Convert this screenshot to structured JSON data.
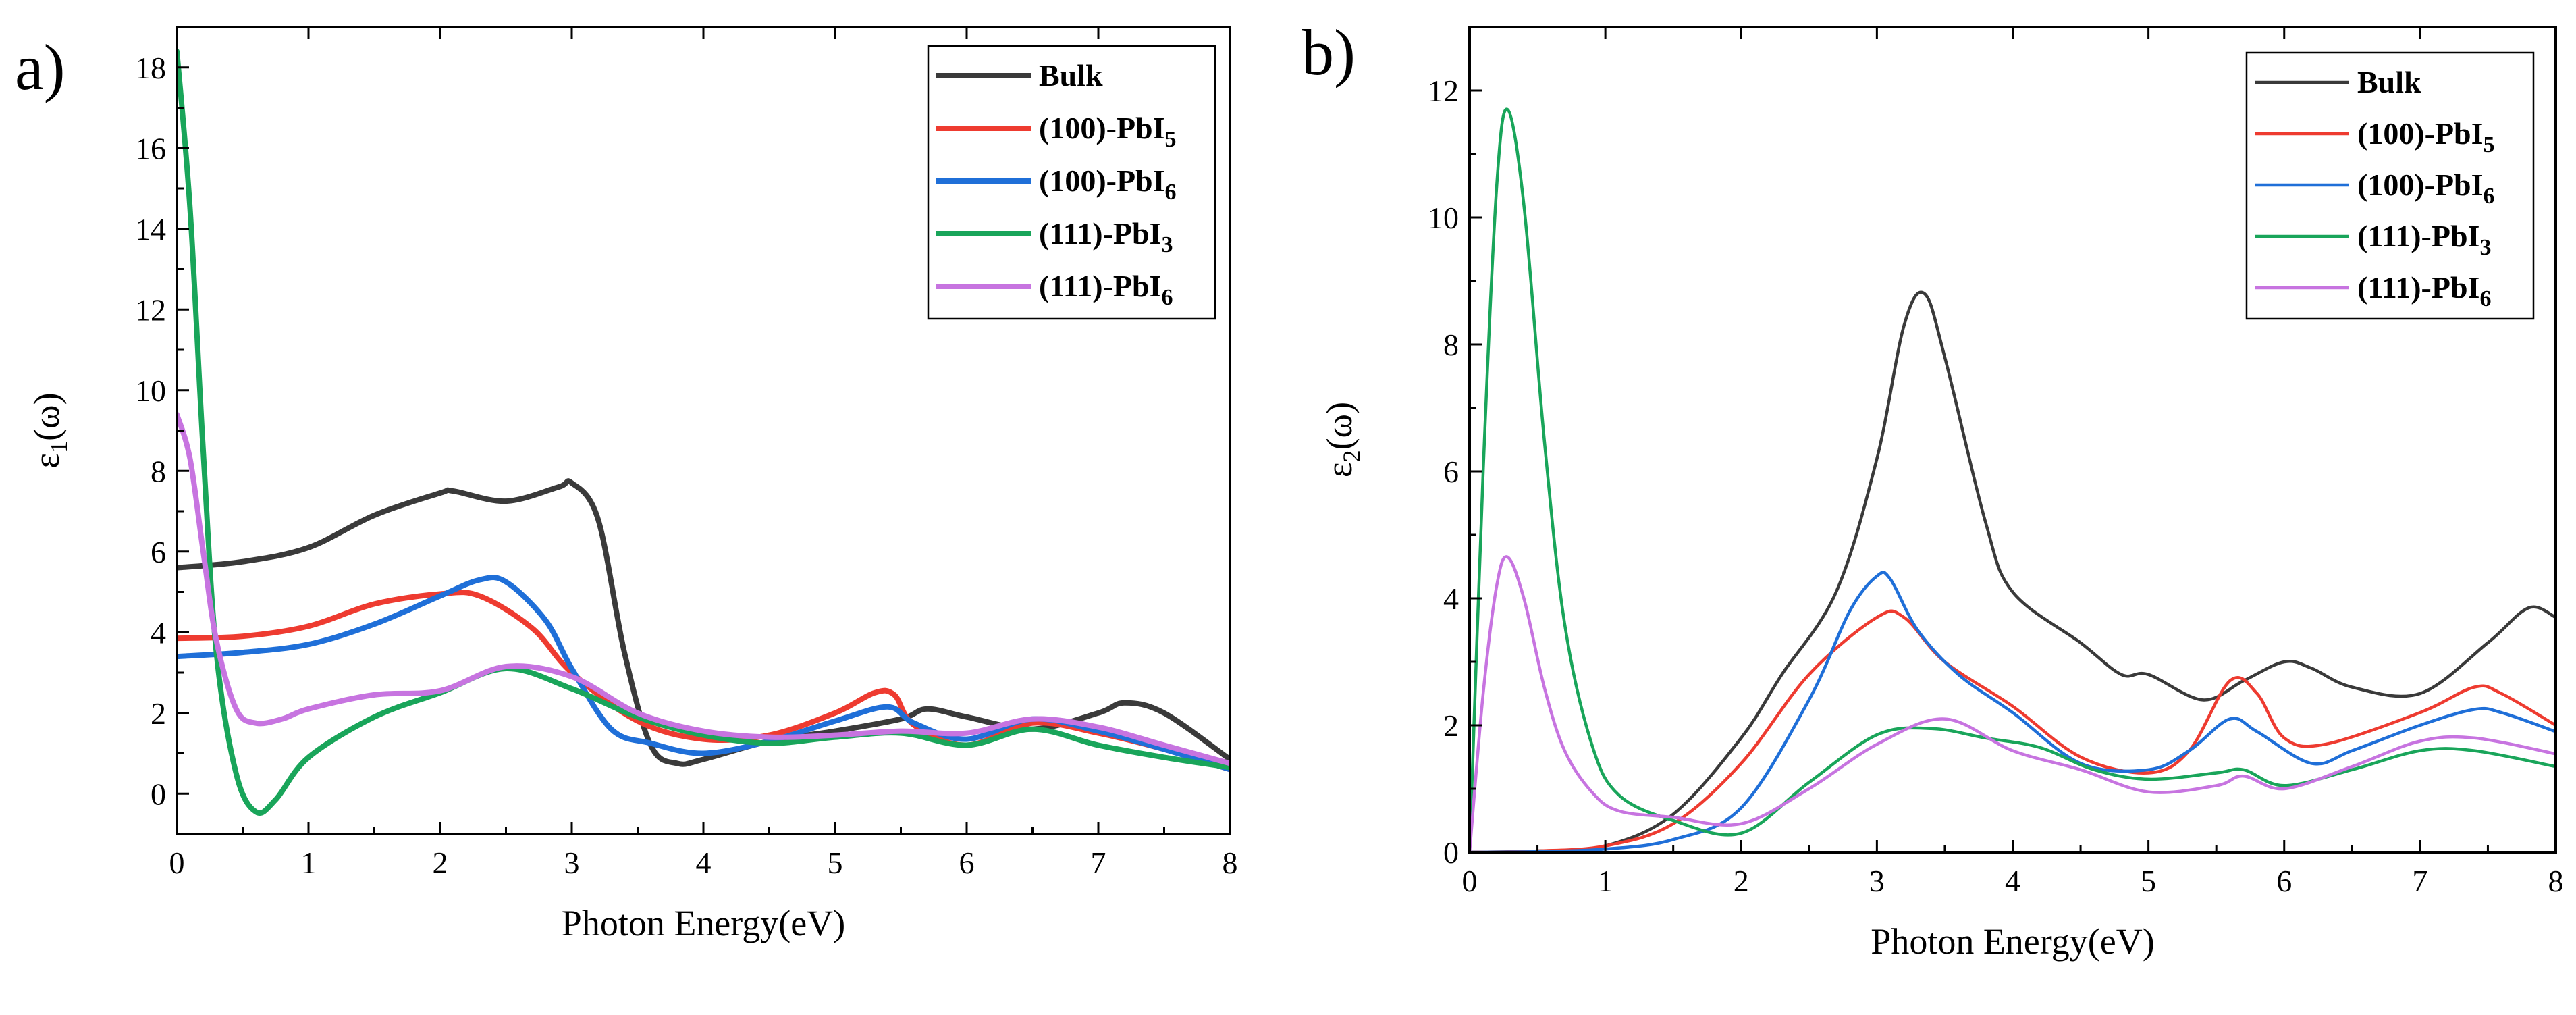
{
  "figure": {
    "panels": [
      {
        "id": "a",
        "label": "a)"
      },
      {
        "id": "b",
        "label": "b)"
      }
    ]
  },
  "chart_data": [
    {
      "type": "line",
      "panel": "a)",
      "xlabel": "Photon Energy(eV)",
      "ylabel_main": "ε",
      "ylabel_sub": "1",
      "ylabel_tail": "(ω)",
      "xlim": [
        0,
        8
      ],
      "ylim": [
        -1,
        19
      ],
      "xticks": [
        0,
        1,
        2,
        3,
        4,
        5,
        6,
        7,
        8
      ],
      "yticks": [
        0,
        2,
        4,
        6,
        8,
        10,
        12,
        14,
        16,
        18
      ],
      "legend_position": "top-right",
      "series": [
        {
          "name": "Bulk",
          "label_main": "Bulk",
          "label_sub": "",
          "color": "#3a3a3a",
          "x": [
            0,
            0.5,
            1,
            1.5,
            2,
            2.1,
            2.5,
            2.9,
            3.0,
            3.2,
            3.4,
            3.6,
            3.8,
            4.0,
            4.5,
            5.0,
            5.5,
            5.7,
            6.0,
            6.5,
            7.0,
            7.2,
            7.5,
            8.0
          ],
          "y": [
            5.6,
            5.75,
            6.1,
            6.9,
            7.45,
            7.5,
            7.25,
            7.6,
            7.7,
            6.8,
            3.5,
            1.2,
            0.75,
            0.85,
            1.3,
            1.55,
            1.85,
            2.1,
            1.9,
            1.6,
            2.0,
            2.25,
            2.0,
            0.85
          ]
        },
        {
          "name": "(100)-PbI5",
          "label_main": "(100)-PbI",
          "label_sub": "5",
          "color": "#ee3b30",
          "x": [
            0,
            0.5,
            1,
            1.5,
            2,
            2.3,
            2.7,
            3.0,
            3.5,
            4.0,
            4.5,
            5.0,
            5.3,
            5.45,
            5.6,
            6.0,
            6.5,
            7.0,
            7.5,
            8.0
          ],
          "y": [
            3.85,
            3.9,
            4.15,
            4.7,
            4.95,
            4.9,
            4.1,
            3.0,
            1.8,
            1.35,
            1.45,
            2.0,
            2.5,
            2.45,
            1.7,
            1.2,
            1.75,
            1.5,
            1.1,
            0.6
          ]
        },
        {
          "name": "(100)-PbI6",
          "label_main": "(100)-PbI",
          "label_sub": "6",
          "color": "#1f6fd8",
          "x": [
            0,
            0.5,
            1,
            1.5,
            2,
            2.3,
            2.5,
            2.8,
            3.0,
            3.3,
            3.6,
            4.0,
            4.5,
            5.0,
            5.4,
            5.6,
            6.0,
            6.5,
            7.0,
            7.5,
            8.0
          ],
          "y": [
            3.4,
            3.5,
            3.7,
            4.2,
            4.9,
            5.3,
            5.25,
            4.3,
            3.1,
            1.6,
            1.25,
            1.0,
            1.3,
            1.8,
            2.15,
            1.75,
            1.35,
            1.85,
            1.55,
            1.1,
            0.6
          ]
        },
        {
          "name": "(111)-PbI3",
          "label_main": "(111)-PbI",
          "label_sub": "3",
          "color": "#19a55a",
          "x": [
            0,
            0.1,
            0.2,
            0.3,
            0.45,
            0.6,
            0.75,
            1.0,
            1.5,
            2.0,
            2.5,
            3.0,
            3.5,
            4.0,
            4.5,
            5.0,
            5.5,
            6.0,
            6.5,
            7.0,
            7.5,
            8.0
          ],
          "y": [
            18.4,
            14.5,
            8.5,
            3.5,
            0.5,
            -0.45,
            -0.15,
            0.9,
            1.9,
            2.5,
            3.1,
            2.6,
            1.9,
            1.45,
            1.25,
            1.4,
            1.5,
            1.2,
            1.6,
            1.2,
            0.9,
            0.65
          ]
        },
        {
          "name": "(111)-PbI6",
          "label_main": "(111)-PbI",
          "label_sub": "6",
          "color": "#c774e0",
          "x": [
            0,
            0.1,
            0.2,
            0.3,
            0.45,
            0.6,
            0.8,
            1.0,
            1.5,
            2.0,
            2.5,
            3.0,
            3.5,
            4.0,
            4.5,
            5.0,
            5.5,
            6.0,
            6.5,
            7.0,
            7.5,
            8.0
          ],
          "y": [
            9.4,
            8.3,
            6.0,
            3.8,
            2.1,
            1.75,
            1.85,
            2.1,
            2.45,
            2.55,
            3.15,
            2.9,
            2.0,
            1.55,
            1.4,
            1.45,
            1.55,
            1.5,
            1.85,
            1.65,
            1.2,
            0.75
          ]
        }
      ]
    },
    {
      "type": "line",
      "panel": "b)",
      "xlabel": "Photon Energy(eV)",
      "ylabel_main": "ε",
      "ylabel_sub": "2",
      "ylabel_tail": "(ω)",
      "xlim": [
        0,
        8
      ],
      "ylim": [
        0,
        13
      ],
      "xticks": [
        0,
        1,
        2,
        3,
        4,
        5,
        6,
        7,
        8
      ],
      "yticks": [
        0,
        2,
        4,
        6,
        8,
        10,
        12
      ],
      "legend_position": "top-right",
      "series": [
        {
          "name": "Bulk",
          "label_main": "Bulk",
          "label_sub": "",
          "color": "#3a3a3a",
          "x": [
            0,
            0.5,
            1,
            1.5,
            2,
            2.3,
            2.7,
            3.0,
            3.2,
            3.35,
            3.5,
            3.8,
            4.0,
            4.5,
            4.8,
            5.0,
            5.4,
            5.7,
            6.0,
            6.2,
            6.5,
            7.0,
            7.5,
            7.8,
            8.0
          ],
          "y": [
            0,
            0.02,
            0.1,
            0.6,
            1.8,
            2.8,
            4.1,
            6.2,
            8.3,
            8.8,
            7.8,
            5.2,
            4.1,
            3.3,
            2.8,
            2.8,
            2.4,
            2.7,
            3.0,
            2.9,
            2.6,
            2.5,
            3.3,
            3.85,
            3.7
          ]
        },
        {
          "name": "(100)-PbI5",
          "label_main": "(100)-PbI",
          "label_sub": "5",
          "color": "#ee3b30",
          "x": [
            0,
            0.5,
            1,
            1.5,
            2,
            2.5,
            3.0,
            3.2,
            3.5,
            4.0,
            4.5,
            5.0,
            5.3,
            5.6,
            5.8,
            6.0,
            6.3,
            7.0,
            7.4,
            7.6,
            8.0
          ],
          "y": [
            0,
            0.02,
            0.1,
            0.45,
            1.4,
            2.8,
            3.7,
            3.7,
            3.0,
            2.3,
            1.5,
            1.25,
            1.6,
            2.7,
            2.5,
            1.8,
            1.7,
            2.2,
            2.6,
            2.5,
            2.0
          ]
        },
        {
          "name": "(100)-PbI6",
          "label_main": "(100)-PbI",
          "label_sub": "6",
          "color": "#1f6fd8",
          "x": [
            0,
            0.5,
            1,
            1.5,
            2,
            2.5,
            2.8,
            3.0,
            3.1,
            3.3,
            3.6,
            4.0,
            4.5,
            5.0,
            5.3,
            5.6,
            5.8,
            6.2,
            6.5,
            7.0,
            7.4,
            7.6,
            8.0
          ],
          "y": [
            0,
            0.01,
            0.05,
            0.2,
            0.7,
            2.4,
            3.8,
            4.35,
            4.3,
            3.5,
            2.8,
            2.2,
            1.4,
            1.3,
            1.6,
            2.1,
            1.9,
            1.4,
            1.6,
            2.0,
            2.25,
            2.2,
            1.9
          ]
        },
        {
          "name": "(111)-PbI3",
          "label_main": "(111)-PbI",
          "label_sub": "3",
          "color": "#19a55a",
          "x": [
            0,
            0.1,
            0.2,
            0.28,
            0.4,
            0.55,
            0.7,
            0.9,
            1.1,
            1.5,
            2.0,
            2.5,
            3.0,
            3.4,
            3.8,
            4.2,
            4.6,
            5.0,
            5.5,
            5.7,
            6.0,
            6.5,
            7.0,
            7.4,
            8.0
          ],
          "y": [
            0,
            6.0,
            10.5,
            11.7,
            10.2,
            6.5,
            3.6,
            1.7,
            0.9,
            0.5,
            0.3,
            1.1,
            1.85,
            1.95,
            1.8,
            1.65,
            1.3,
            1.15,
            1.25,
            1.3,
            1.05,
            1.3,
            1.6,
            1.6,
            1.35
          ]
        },
        {
          "name": "(111)-PbI6",
          "label_main": "(111)-PbI",
          "label_sub": "6",
          "color": "#c774e0",
          "x": [
            0,
            0.1,
            0.2,
            0.28,
            0.4,
            0.55,
            0.7,
            0.9,
            1.1,
            1.5,
            2.0,
            2.5,
            3.0,
            3.5,
            4.0,
            4.5,
            5.0,
            5.5,
            5.7,
            6.0,
            6.5,
            7.0,
            7.4,
            8.0
          ],
          "y": [
            0,
            2.5,
            4.2,
            4.65,
            4.0,
            2.6,
            1.6,
            0.95,
            0.65,
            0.55,
            0.45,
            1.0,
            1.7,
            2.1,
            1.6,
            1.3,
            0.95,
            1.05,
            1.2,
            1.0,
            1.35,
            1.75,
            1.8,
            1.55
          ]
        }
      ]
    }
  ]
}
